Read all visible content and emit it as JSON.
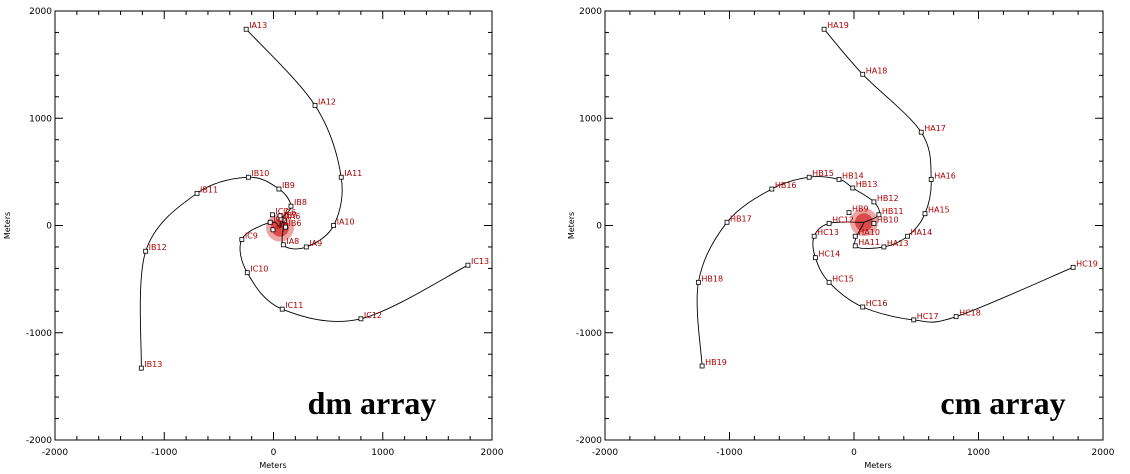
{
  "chart_data": [
    {
      "type": "scatter",
      "title": "",
      "annotation": "dm array",
      "xlabel": "Meters",
      "ylabel": "Meters",
      "xlim": [
        -2000,
        2000
      ],
      "ylim": [
        -2000,
        2000
      ],
      "xticks": [
        "-2000",
        "-1000",
        "0",
        "1000",
        "2000"
      ],
      "yticks": [
        "-2000",
        "-1000",
        "0",
        "1000",
        "2000"
      ],
      "arms": [
        {
          "points": [
            {
              "x": 60,
              "y": -20,
              "label": ""
            },
            {
              "x": 100,
              "y": 50,
              "label": "IA6"
            },
            {
              "x": 90,
              "y": -180,
              "label": "IA8"
            },
            {
              "x": 300,
              "y": -200,
              "label": "IA9"
            },
            {
              "x": 550,
              "y": 0,
              "label": "IA10"
            },
            {
              "x": 620,
              "y": 450,
              "label": "IA11"
            },
            {
              "x": 380,
              "y": 1120,
              "label": "IA12"
            },
            {
              "x": -250,
              "y": 1830,
              "label": "IA13"
            }
          ]
        },
        {
          "points": [
            {
              "x": 60,
              "y": -20,
              "label": ""
            },
            {
              "x": 70,
              "y": 60,
              "label": "IB7"
            },
            {
              "x": 160,
              "y": 180,
              "label": "IB8"
            },
            {
              "x": 50,
              "y": 340,
              "label": "IB9"
            },
            {
              "x": -230,
              "y": 450,
              "label": "IB10"
            },
            {
              "x": -700,
              "y": 300,
              "label": "IB11"
            },
            {
              "x": -1170,
              "y": -240,
              "label": "IB12"
            },
            {
              "x": -1210,
              "y": -1330,
              "label": "IB13"
            }
          ]
        },
        {
          "points": [
            {
              "x": 60,
              "y": -20,
              "label": ""
            },
            {
              "x": -30,
              "y": 30,
              "label": "IC8"
            },
            {
              "x": -290,
              "y": -130,
              "label": "IC9"
            },
            {
              "x": -240,
              "y": -440,
              "label": "IC10"
            },
            {
              "x": 80,
              "y": -780,
              "label": "IC11"
            },
            {
              "x": 800,
              "y": -870,
              "label": "IC12"
            },
            {
              "x": 1780,
              "y": -370,
              "label": "IC13"
            }
          ]
        }
      ],
      "center_labels": [
        {
          "x": -10,
          "y": 100,
          "label": "IC7"
        },
        {
          "x": -5,
          "y": -40,
          "label": "IA7"
        },
        {
          "x": 110,
          "y": -15,
          "label": "IB6"
        },
        {
          "x": 60,
          "y": 90,
          "label": "IC6"
        }
      ]
    },
    {
      "type": "scatter",
      "title": "",
      "annotation": "cm array",
      "xlabel": "Meters",
      "ylabel": "Meters",
      "xlim": [
        -2000,
        2000
      ],
      "ylim": [
        -2000,
        2000
      ],
      "xticks": [
        "-2000",
        "-1000",
        "0",
        "1000",
        "2000"
      ],
      "yticks": [
        "-2000",
        "-1000",
        "0",
        "1000",
        "2000"
      ],
      "arms": [
        {
          "points": [
            {
              "x": 80,
              "y": 30,
              "label": ""
            },
            {
              "x": 10,
              "y": -190,
              "label": "HA11"
            },
            {
              "x": 240,
              "y": -200,
              "label": "HA13"
            },
            {
              "x": 430,
              "y": -100,
              "label": "HA14"
            },
            {
              "x": 570,
              "y": 110,
              "label": "HA15"
            },
            {
              "x": 620,
              "y": 430,
              "label": "HA16"
            },
            {
              "x": 540,
              "y": 870,
              "label": "HA17"
            },
            {
              "x": 70,
              "y": 1410,
              "label": "HA18"
            },
            {
              "x": -240,
              "y": 1830,
              "label": "HA19"
            }
          ]
        },
        {
          "points": [
            {
              "x": 80,
              "y": 30,
              "label": ""
            },
            {
              "x": 200,
              "y": 100,
              "label": "HB11"
            },
            {
              "x": 160,
              "y": 220,
              "label": "HB12"
            },
            {
              "x": -10,
              "y": 350,
              "label": "HB13"
            },
            {
              "x": -120,
              "y": 430,
              "label": "HB14"
            },
            {
              "x": -360,
              "y": 450,
              "label": "HB15"
            },
            {
              "x": -660,
              "y": 340,
              "label": "HB16"
            },
            {
              "x": -1020,
              "y": 30,
              "label": "HB17"
            },
            {
              "x": -1250,
              "y": -530,
              "label": "HB18"
            },
            {
              "x": -1220,
              "y": -1310,
              "label": "HB19"
            }
          ]
        },
        {
          "points": [
            {
              "x": 80,
              "y": 30,
              "label": ""
            },
            {
              "x": -200,
              "y": 20,
              "label": "HC12"
            },
            {
              "x": -320,
              "y": -100,
              "label": "HC13"
            },
            {
              "x": -310,
              "y": -300,
              "label": "HC14"
            },
            {
              "x": -200,
              "y": -530,
              "label": "HC15"
            },
            {
              "x": 70,
              "y": -760,
              "label": "HC16"
            },
            {
              "x": 480,
              "y": -880,
              "label": "HC17"
            },
            {
              "x": 820,
              "y": -850,
              "label": "HC18"
            },
            {
              "x": 1760,
              "y": -390,
              "label": "HC19"
            }
          ]
        }
      ],
      "center_labels": [
        {
          "x": 160,
          "y": 20,
          "label": "HB10"
        },
        {
          "x": 10,
          "y": -100,
          "label": "HA10"
        },
        {
          "x": -40,
          "y": 120,
          "label": "HB9"
        }
      ]
    }
  ]
}
